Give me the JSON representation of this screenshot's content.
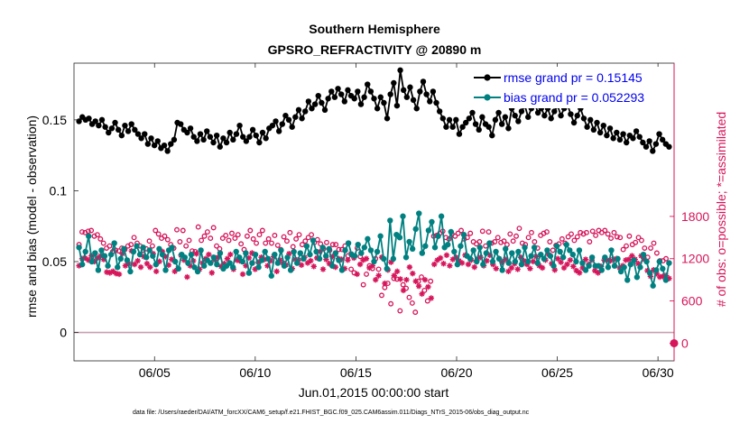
{
  "chart_data": {
    "type": "line",
    "title": "Southern Hemisphere",
    "subtitle": "GPSRO_REFRACTIVITY @ 20890 m",
    "xlabel": "Jun.01,2015 00:00:00 start",
    "ylabel_left": "rmse and bias (model - observation)",
    "ylabel_right": "# of obs: o=possible; *=assimilated",
    "footer": "data file: /Users/raeder/DAI/ATM_forcXX/CAM6_setup/f.e21.FHIST_BGC.f09_025.CAM6assim.011/Diags_NTrS_2015-06/obs_diag_output.nc",
    "xlim": [
      1,
      30.8
    ],
    "ylim_left": [
      -0.02,
      0.19
    ],
    "ylim_right": [
      -250,
      3975
    ],
    "x_ticks": [
      5,
      10,
      15,
      20,
      25,
      30
    ],
    "x_tick_labels": [
      "06/05",
      "06/10",
      "06/15",
      "06/20",
      "06/25",
      "06/30"
    ],
    "y_ticks_left": [
      0,
      0.05,
      0.1,
      0.15
    ],
    "y_tick_labels_left": [
      "0",
      "0.05",
      "0.1",
      "0.15"
    ],
    "y_ticks_right": [
      0,
      600,
      1200,
      1800
    ],
    "y_tick_labels_right": [
      "0",
      "600",
      "1200",
      "1800"
    ],
    "grid": false,
    "legend_position": "top-right",
    "colors": {
      "rmse": "#000000",
      "bias": "#008080",
      "counts": "#d6155a",
      "zero_line": "#c8a0b0"
    },
    "series": [
      {
        "name": "rmse",
        "legend": "rmse grand pr = 0.15145",
        "axis": "left",
        "values": [
          0.149,
          0.152,
          0.15,
          0.151,
          0.147,
          0.149,
          0.146,
          0.15,
          0.145,
          0.141,
          0.144,
          0.148,
          0.143,
          0.139,
          0.146,
          0.142,
          0.147,
          0.143,
          0.14,
          0.137,
          0.14,
          0.133,
          0.137,
          0.132,
          0.135,
          0.13,
          0.132,
          0.128,
          0.133,
          0.136,
          0.148,
          0.147,
          0.143,
          0.141,
          0.144,
          0.138,
          0.135,
          0.14,
          0.136,
          0.142,
          0.138,
          0.134,
          0.139,
          0.131,
          0.137,
          0.134,
          0.141,
          0.136,
          0.14,
          0.146,
          0.138,
          0.135,
          0.138,
          0.143,
          0.139,
          0.134,
          0.141,
          0.137,
          0.144,
          0.146,
          0.149,
          0.142,
          0.147,
          0.153,
          0.15,
          0.145,
          0.152,
          0.157,
          0.151,
          0.156,
          0.163,
          0.158,
          0.161,
          0.167,
          0.162,
          0.157,
          0.165,
          0.17,
          0.166,
          0.172,
          0.168,
          0.163,
          0.171,
          0.167,
          0.165,
          0.17,
          0.161,
          0.166,
          0.175,
          0.17,
          0.165,
          0.158,
          0.166,
          0.162,
          0.151,
          0.168,
          0.176,
          0.16,
          0.185,
          0.171,
          0.166,
          0.173,
          0.164,
          0.158,
          0.17,
          0.177,
          0.168,
          0.163,
          0.17,
          0.162,
          0.156,
          0.151,
          0.145,
          0.15,
          0.145,
          0.15,
          0.14,
          0.145,
          0.148,
          0.151,
          0.155,
          0.147,
          0.143,
          0.152,
          0.147,
          0.145,
          0.139,
          0.15,
          0.155,
          0.147,
          0.152,
          0.144,
          0.158,
          0.153,
          0.149,
          0.156,
          0.16,
          0.152,
          0.158,
          0.162,
          0.155,
          0.158,
          0.153,
          0.158,
          0.151,
          0.156,
          0.16,
          0.153,
          0.158,
          0.161,
          0.154,
          0.148,
          0.153,
          0.158,
          0.151,
          0.145,
          0.15,
          0.143,
          0.148,
          0.141,
          0.146,
          0.139,
          0.144,
          0.137,
          0.141,
          0.136,
          0.14,
          0.134,
          0.139,
          0.137,
          0.142,
          0.138,
          0.134,
          0.131,
          0.135,
          0.128,
          0.133,
          0.14,
          0.136,
          0.133,
          0.131
        ]
      },
      {
        "name": "bias",
        "legend": "bias grand pr = 0.052293",
        "axis": "left",
        "values": [
          0.06,
          0.048,
          0.057,
          0.068,
          0.05,
          0.056,
          0.044,
          0.058,
          0.054,
          0.047,
          0.055,
          0.063,
          0.046,
          0.052,
          0.059,
          0.051,
          0.043,
          0.057,
          0.061,
          0.055,
          0.06,
          0.053,
          0.058,
          0.054,
          0.048,
          0.059,
          0.055,
          0.044,
          0.058,
          0.06,
          0.05,
          0.045,
          0.055,
          0.053,
          0.049,
          0.055,
          0.046,
          0.043,
          0.058,
          0.047,
          0.051,
          0.049,
          0.053,
          0.048,
          0.056,
          0.045,
          0.047,
          0.049,
          0.046,
          0.057,
          0.053,
          0.05,
          0.056,
          0.042,
          0.049,
          0.055,
          0.046,
          0.051,
          0.057,
          0.052,
          0.04,
          0.055,
          0.049,
          0.058,
          0.047,
          0.053,
          0.044,
          0.057,
          0.049,
          0.056,
          0.052,
          0.061,
          0.055,
          0.065,
          0.057,
          0.052,
          0.06,
          0.054,
          0.059,
          0.047,
          0.056,
          0.051,
          0.044,
          0.058,
          0.063,
          0.055,
          0.054,
          0.062,
          0.056,
          0.06,
          0.066,
          0.058,
          0.05,
          0.057,
          0.068,
          0.052,
          0.045,
          0.079,
          0.052,
          0.069,
          0.067,
          0.082,
          0.053,
          0.064,
          0.059,
          0.073,
          0.084,
          0.056,
          0.061,
          0.072,
          0.078,
          0.06,
          0.068,
          0.082,
          0.06,
          0.062,
          0.071,
          0.057,
          0.048,
          0.061,
          0.069,
          0.054,
          0.052,
          0.058,
          0.05,
          0.06,
          0.048,
          0.056,
          0.063,
          0.05,
          0.057,
          0.052,
          0.044,
          0.059,
          0.049,
          0.056,
          0.05,
          0.057,
          0.048,
          0.06,
          0.05,
          0.054,
          0.06,
          0.049,
          0.055,
          0.052,
          0.058,
          0.054,
          0.047,
          0.061,
          0.057,
          0.053,
          0.062,
          0.058,
          0.055,
          0.05,
          0.058,
          0.049,
          0.044,
          0.047,
          0.053,
          0.047,
          0.047,
          0.044,
          0.053,
          0.046,
          0.058,
          0.047,
          0.052,
          0.043,
          0.046,
          0.037,
          0.048,
          0.051,
          0.039,
          0.046,
          0.055,
          0.05,
          0.042,
          0.033,
          0.044,
          0.05,
          0.045,
          0.037,
          0.049
        ]
      },
      {
        "name": "possible",
        "legend": "o=possible",
        "axis": "right",
        "values": [
          1400,
          1580,
          1570,
          1590,
          1600,
          1520,
          1540,
          1480,
          1420,
          1350,
          1380,
          1300,
          1320,
          1310,
          1350,
          1330,
          1380,
          1400,
          1500,
          1420,
          1380,
          1320,
          1340,
          1450,
          1380,
          1600,
          1550,
          1490,
          1520,
          1470,
          1400,
          1350,
          1610,
          1440,
          1600,
          1380,
          1460,
          1310,
          1300,
          1650,
          1460,
          1520,
          1580,
          1490,
          1640,
          1380,
          1340,
          1490,
          1530,
          1460,
          1560,
          1490,
          1540,
          1410,
          1330,
          1520,
          1600,
          1480,
          1420,
          1540,
          1600,
          1420,
          1480,
          1420,
          1530,
          1390,
          1330,
          1510,
          1450,
          1570,
          1370,
          1480,
          1540,
          1400,
          1450,
          1500,
          1540,
          1430,
          1470,
          1410,
          1340,
          1430,
          1320,
          1400,
          1400,
          1330,
          1330,
          1380,
          1240,
          1050,
          1000,
          1350,
          1230,
          830,
          980,
          1100,
          1060,
          1200,
          1050,
          680,
          790,
          850,
          560,
          920,
          910,
          460,
          830,
          780,
          650,
          570,
          440,
          880,
          940,
          750,
          600,
          880,
          1520,
          1530,
          1560,
          1590,
          1500,
          1480,
          1550,
          1520,
          1560,
          1600,
          1480,
          1500,
          1560,
          1440,
          1410,
          1440,
          1590,
          1380,
          1580,
          1420,
          1440,
          1500,
          1430,
          1450,
          1400,
          1550,
          1450,
          1520,
          1630,
          1420,
          1400,
          1500,
          1570,
          1440,
          1350,
          1530,
          1560,
          1580,
          1440,
          1320,
          1390,
          1410,
          1480,
          1420,
          1510,
          1550,
          1460,
          1510,
          1570,
          1550,
          1570,
          1440,
          1590,
          1530,
          1600,
          1570,
          1600,
          1550,
          1490,
          1570,
          1510,
          1500,
          1330,
          1380,
          1520,
          1400,
          1430,
          1500,
          1460,
          1350,
          1220,
          1350,
          1420,
          1280,
          1170,
          1170,
          1200,
          1140
        ]
      },
      {
        "name": "assimilated",
        "legend": "*=assimilated",
        "axis": "right",
        "values": [
          1100,
          1200,
          1210,
          1180,
          1240,
          1160,
          1210,
          1240,
          1190,
          1010,
          1000,
          1020,
          990,
          980,
          1270,
          1100,
          1130,
          1310,
          1120,
          1170,
          1080,
          1230,
          1130,
          1080,
          1270,
          1020,
          1160,
          1300,
          1230,
          1110,
          1190,
          1020,
          1060,
          1250,
          1180,
          940,
          1100,
          1170,
          1270,
          1050,
          1140,
          1200,
          1260,
          1000,
          1180,
          1220,
          1090,
          1130,
          1200,
          1260,
          1050,
          1180,
          1170,
          980,
          1100,
          1210,
          1280,
          1050,
          1150,
          1220,
          1190,
          1100,
          1170,
          1230,
          1020,
          1180,
          1140,
          1110,
          1270,
          1060,
          1190,
          1180,
          1110,
          1220,
          1140,
          1170,
          1090,
          1210,
          1300,
          1050,
          1190,
          1130,
          1230,
          1080,
          1200,
          1190,
          1060,
          1180,
          1270,
          1210,
          980,
          1120,
          1180,
          1200,
          1070,
          1100,
          900,
          960,
          1220,
          850,
          1040,
          1150,
          960,
          1020,
          910,
          750,
          900,
          1080,
          990,
          880,
          810,
          700,
          900,
          800,
          640,
          1120,
          1180,
          1210,
          1130,
          1250,
          1100,
          1190,
          1220,
          1170,
          1140,
          1250,
          1120,
          1180,
          1080,
          1200,
          1220,
          1100,
          1170,
          1250,
          1120,
          1060,
          1200,
          1150,
          1190,
          1020,
          1070,
          1130,
          1050,
          1220,
          1170,
          1120,
          1060,
          1160,
          1230,
          1100,
          1070,
          1180,
          1260,
          1130,
          1040,
          1200,
          1150,
          1070,
          1120,
          1180,
          1090,
          1030,
          1000,
          1070,
          1190,
          1120,
          1180,
          1030,
          1000,
          1090,
          1180,
          1180,
          1170,
          1190,
          1200,
          1070,
          1100,
          1180,
          1190,
          1240,
          1190,
          1130,
          1240,
          1190,
          1030,
          950,
          1040,
          990,
          940,
          950,
          960,
          920
        ]
      }
    ]
  }
}
